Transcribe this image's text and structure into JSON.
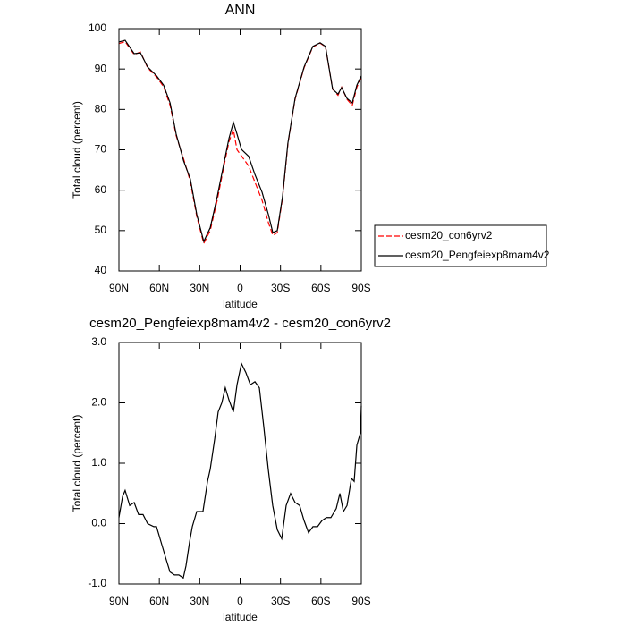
{
  "chart_data": [
    {
      "type": "line",
      "title": "ANN",
      "x_label": "latitude",
      "y_label": "Total cloud (percent)",
      "x": [
        90,
        85.4,
        78.7,
        74,
        68.7,
        62,
        56.8,
        52,
        47.5,
        42,
        37,
        32.2,
        27,
        22.2,
        17,
        12.3,
        8.3,
        5,
        2.3,
        -1,
        -6.3,
        -11,
        -16.3,
        -21,
        -24.3,
        -27.6,
        -31.5,
        -35.5,
        -40.8,
        -47.5,
        -54,
        -59.4,
        -63.4,
        -68.7,
        -72.7,
        -75.4,
        -79.4,
        -83.3,
        -86.7,
        -90
      ],
      "series": [
        {
          "name": "cesm20_con6yrv2",
          "color": "#ff0000",
          "line_style": "dashed",
          "values": [
            96.3,
            96.8,
            93.6,
            94.2,
            90.3,
            88,
            85.6,
            81,
            73.5,
            67.8,
            62.2,
            53.5,
            46.8,
            50,
            57.5,
            65.5,
            72,
            75,
            70,
            68.5,
            66,
            62,
            57.5,
            52,
            48.8,
            49.5,
            58,
            71.5,
            82.5,
            90.3,
            95.5,
            96.4,
            95.5,
            85,
            83.5,
            85.5,
            82.5,
            81,
            85.5,
            88
          ]
        },
        {
          "name": "cesm20_Pengfeiexp8mam4v2",
          "color": "#000000",
          "line_style": "solid",
          "values": [
            96.7,
            97.1,
            93.8,
            94,
            90.5,
            88.3,
            86,
            81.6,
            73.9,
            67.3,
            62.8,
            54,
            47.3,
            50.7,
            58.4,
            66.2,
            72.8,
            76.8,
            73.9,
            70.1,
            68.4,
            63.9,
            59.5,
            54,
            49.5,
            50,
            58.4,
            71.7,
            82.7,
            90.5,
            95.6,
            96.5,
            95.6,
            85,
            83.8,
            85.4,
            82.7,
            81.6,
            86,
            88.3
          ]
        }
      ],
      "xlim": [
        90,
        -90
      ],
      "xticks": [
        {
          "value": 90,
          "label": "90N"
        },
        {
          "value": 60,
          "label": "60N"
        },
        {
          "value": 30,
          "label": "30N"
        },
        0,
        {
          "value": -30,
          "label": "30S"
        },
        {
          "value": -60,
          "label": "60S"
        },
        {
          "value": -90,
          "label": "90S"
        }
      ],
      "ylim": [
        40,
        100
      ],
      "yticks": [
        40,
        50,
        60,
        70,
        80,
        90,
        100
      ],
      "legend": "right"
    },
    {
      "type": "line",
      "title": "cesm20_Pengfeiexp8mam4v2 - cesm20_con6yrv2",
      "x_label": "latitude",
      "y_label": "Total cloud (percent)",
      "x": [
        90,
        87.3,
        85.4,
        82,
        78.7,
        75.4,
        72.1,
        68.7,
        64.1,
        62.1,
        58.8,
        55.5,
        52.1,
        48.8,
        45.5,
        42.2,
        40.2,
        37.5,
        35.5,
        32.2,
        27.6,
        24.2,
        22.2,
        18.9,
        16.3,
        13.6,
        11,
        8.3,
        5,
        2.3,
        -1,
        -4.3,
        -7.6,
        -11,
        -14.3,
        -17.6,
        -20.9,
        -24.2,
        -27.6,
        -30.9,
        -34.2,
        -37.5,
        -40.8,
        -44.2,
        -47.5,
        -50.8,
        -54.1,
        -57.5,
        -60.8,
        -64.1,
        -67.4,
        -71.4,
        -74.1,
        -76.7,
        -79.4,
        -82.7,
        -84.7,
        -86.7,
        -89.3,
        -90
      ],
      "series": [
        {
          "name": "cesm20_Pengfeiexp8mam4v2",
          "color": "#000000",
          "line_style": "solid",
          "values": [
            0.1,
            0.45,
            0.55,
            0.3,
            0.35,
            0.15,
            0.15,
            0,
            -0.05,
            -0.05,
            -0.3,
            -0.55,
            -0.8,
            -0.85,
            -0.85,
            -0.9,
            -0.7,
            -0.3,
            -0.05,
            0.2,
            0.2,
            0.7,
            0.9,
            1.4,
            1.85,
            2,
            2.25,
            2.05,
            1.85,
            2.3,
            2.65,
            2.5,
            2.3,
            2.35,
            2.25,
            1.6,
            0.9,
            0.3,
            -0.1,
            -0.25,
            0.3,
            0.5,
            0.35,
            0.3,
            0.05,
            -0.15,
            -0.05,
            -0.05,
            0.05,
            0.1,
            0.1,
            0.25,
            0.5,
            0.2,
            0.3,
            0.75,
            0.7,
            1.3,
            1.5,
            1.95
          ]
        }
      ],
      "xlim": [
        90,
        -90
      ],
      "xticks": [
        {
          "value": 90,
          "label": "90N"
        },
        {
          "value": 60,
          "label": "60N"
        },
        {
          "value": 30,
          "label": "30N"
        },
        0,
        {
          "value": -30,
          "label": "30S"
        },
        {
          "value": -60,
          "label": "60S"
        },
        {
          "value": -90,
          "label": "90S"
        }
      ],
      "ylim": [
        -1,
        3
      ],
      "yticks": [
        {
          "value": -1,
          "label": "-1.0"
        },
        {
          "value": 0,
          "label": "0.0"
        },
        {
          "value": 1,
          "label": "1.0"
        },
        {
          "value": 2,
          "label": "2.0"
        },
        {
          "value": 3,
          "label": "3.0"
        }
      ]
    }
  ]
}
